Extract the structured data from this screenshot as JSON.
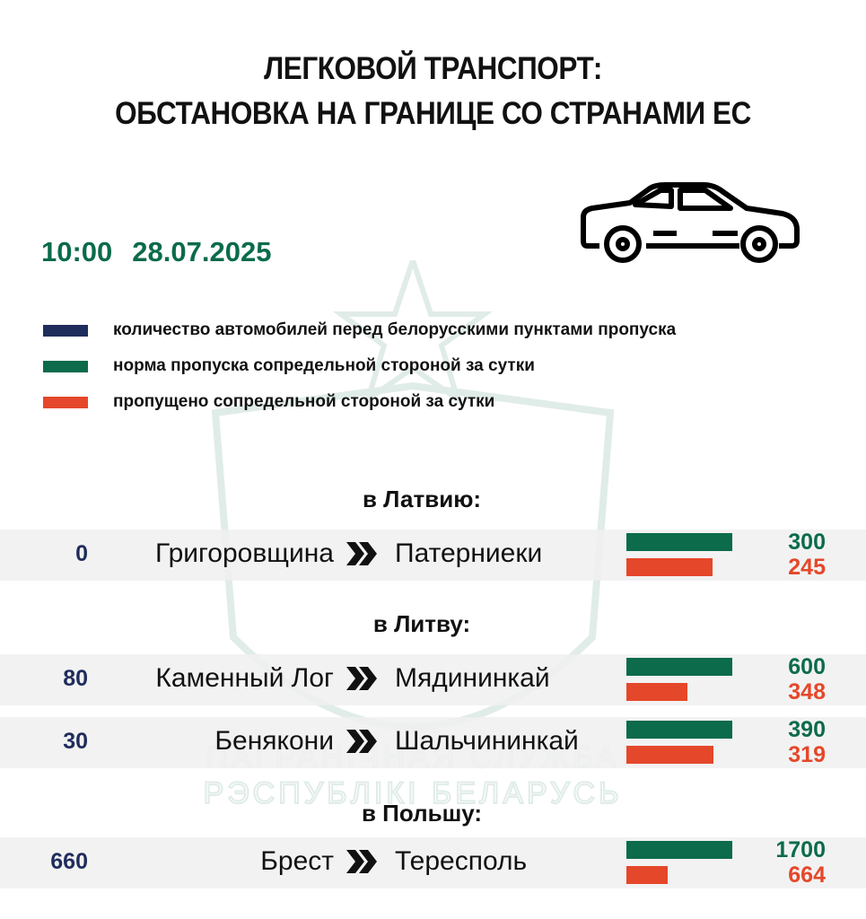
{
  "title_line1": "ЛЕГКОВОЙ ТРАНСПОРТ:",
  "title_line2": "ОБСТАНОВКА НА ГРАНИЦЕ СО СТРАНАМИ ЕС",
  "time": "10:00",
  "date": "28.07.2025",
  "icon": "car-icon",
  "watermark_text": "ПАГРАНІЧНАЯ СЛУЖБА РЭСПУБЛІКІ БЕЛАРУСЬ",
  "colors": {
    "queue": "#1f2d5c",
    "norm": "#0b6b4a",
    "passed": "#e5472a"
  },
  "chart_data": {
    "type": "bar",
    "legend": [
      {
        "name": "количество автомобилей перед белорусскими пунктами пропуска",
        "color": "#1f2d5c"
      },
      {
        "name": "норма пропуска сопредельной стороной за сутки",
        "color": "#0b6b4a"
      },
      {
        "name": "пропущено сопредельной стороной за сутки",
        "color": "#e5472a"
      }
    ],
    "legend_placement": "top-left",
    "groups": [
      {
        "label": "в Латвию:",
        "rows": [
          {
            "queue": 0,
            "from": "Григоровщина",
            "to": "Патерниеки",
            "norm": 300,
            "passed": 245
          }
        ]
      },
      {
        "label": "в Литву:",
        "rows": [
          {
            "queue": 80,
            "from": "Каменный Лог",
            "to": "Мядининкай",
            "norm": 600,
            "passed": 348
          },
          {
            "queue": 30,
            "from": "Бенякони",
            "to": "Шальчининкай",
            "norm": 390,
            "passed": 319
          }
        ]
      },
      {
        "label": "в Польшу:",
        "rows": [
          {
            "queue": 660,
            "from": "Брест",
            "to": "Тересполь",
            "norm": 1700,
            "passed": 664
          }
        ]
      }
    ]
  }
}
